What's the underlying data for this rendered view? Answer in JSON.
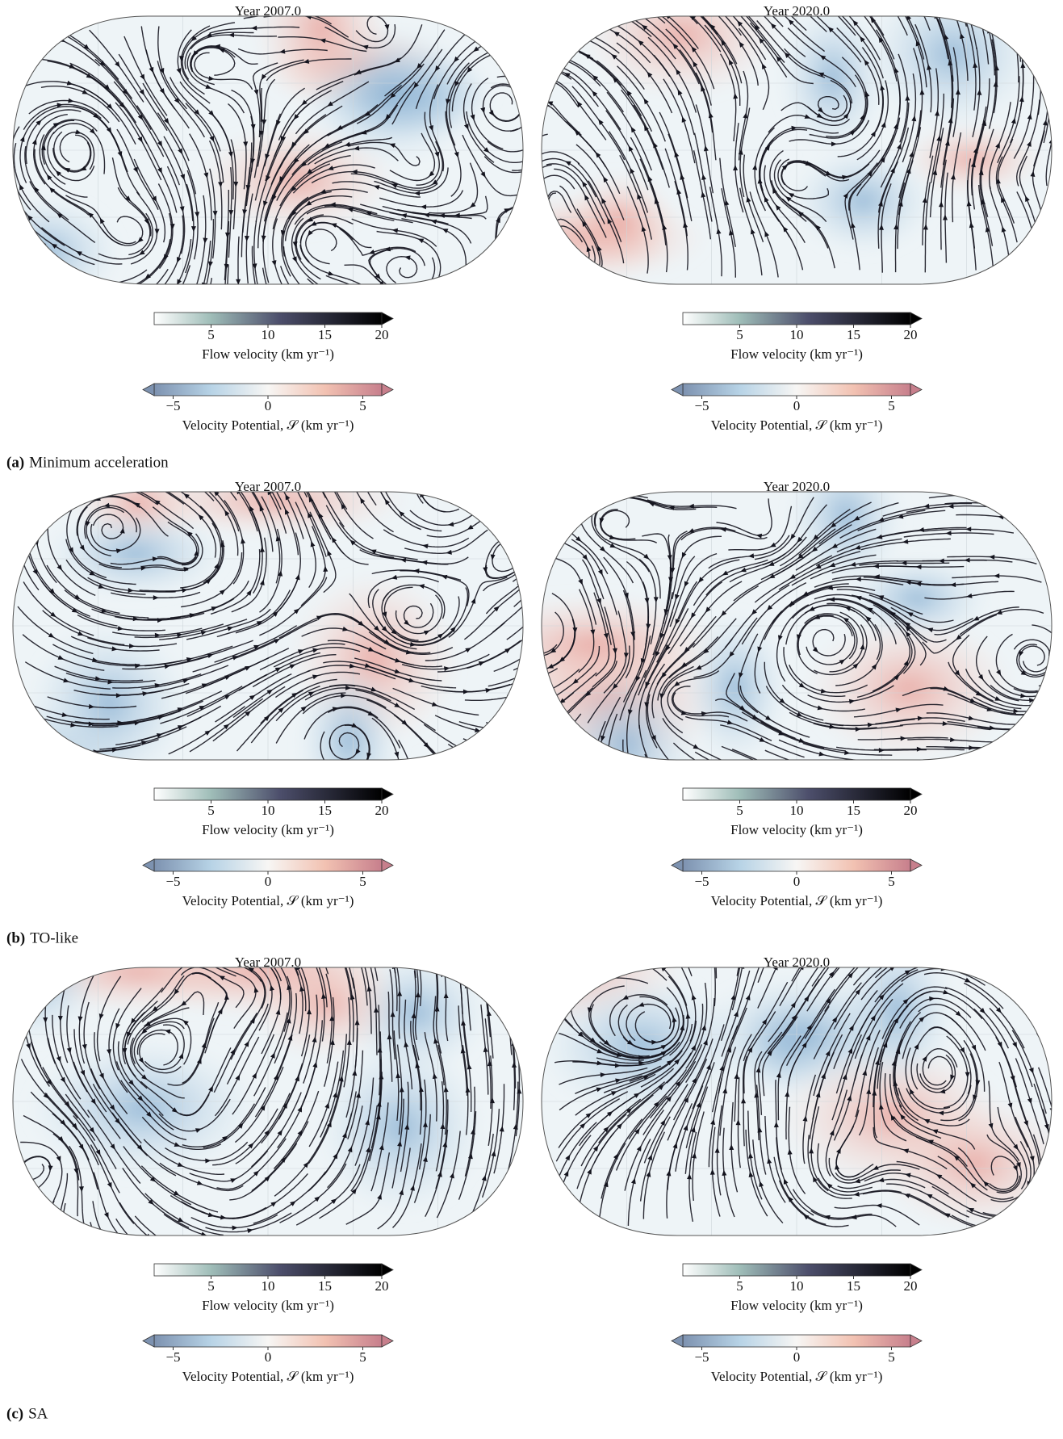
{
  "figure": {
    "panels": [
      {
        "label": "(a)",
        "caption": "Minimum acceleration",
        "maps": [
          {
            "title": "Year 2007.0",
            "colorbars": [
              {
                "label": "Flow velocity (km yr⁻¹)",
                "xlim": [
                  0,
                  20
                ],
                "xticks": [
                  5,
                  10,
                  15,
                  20
                ]
              },
              {
                "label": "Velocity Potential, 𝒮 (km yr⁻¹)",
                "xlim": [
                  -6,
                  6
                ],
                "xticks": [
                  {
                    "value": -5,
                    "label": "−5"
                  },
                  0,
                  5
                ]
              }
            ]
          },
          {
            "title": "Year 2020.0",
            "colorbars": [
              {
                "label": "Flow velocity (km yr⁻¹)",
                "xlim": [
                  0,
                  20
                ],
                "xticks": [
                  5,
                  10,
                  15,
                  20
                ]
              },
              {
                "label": "Velocity Potential, 𝒮 (km yr⁻¹)",
                "xlim": [
                  -6,
                  6
                ],
                "xticks": [
                  {
                    "value": -5,
                    "label": "−5"
                  },
                  0,
                  5
                ]
              }
            ]
          }
        ]
      },
      {
        "label": "(b)",
        "caption": "TO-like",
        "maps": [
          {
            "title": "Year 2007.0",
            "colorbars": [
              {
                "label": "Flow velocity (km yr⁻¹)",
                "xlim": [
                  0,
                  20
                ],
                "xticks": [
                  5,
                  10,
                  15,
                  20
                ]
              },
              {
                "label": "Velocity Potential, 𝒮 (km yr⁻¹)",
                "xlim": [
                  -6,
                  6
                ],
                "xticks": [
                  {
                    "value": -5,
                    "label": "−5"
                  },
                  0,
                  5
                ]
              }
            ]
          },
          {
            "title": "Year 2020.0",
            "colorbars": [
              {
                "label": "Flow velocity (km yr⁻¹)",
                "xlim": [
                  0,
                  20
                ],
                "xticks": [
                  5,
                  10,
                  15,
                  20
                ]
              },
              {
                "label": "Velocity Potential, 𝒮 (km yr⁻¹)",
                "xlim": [
                  -6,
                  6
                ],
                "xticks": [
                  {
                    "value": -5,
                    "label": "−5"
                  },
                  0,
                  5
                ]
              }
            ]
          }
        ]
      },
      {
        "label": "(c)",
        "caption": "SA",
        "maps": [
          {
            "title": "Year 2007.0",
            "colorbars": [
              {
                "label": "Flow velocity (km yr⁻¹)",
                "xlim": [
                  0,
                  20
                ],
                "xticks": [
                  5,
                  10,
                  15,
                  20
                ]
              },
              {
                "label": "Velocity Potential, 𝒮 (km yr⁻¹)",
                "xlim": [
                  -6,
                  6
                ],
                "xticks": [
                  {
                    "value": -5,
                    "label": "−5"
                  },
                  0,
                  5
                ]
              }
            ]
          },
          {
            "title": "Year 2020.0",
            "colorbars": [
              {
                "label": "Flow velocity (km yr⁻¹)",
                "xlim": [
                  0,
                  20
                ],
                "xticks": [
                  5,
                  10,
                  15,
                  20
                ]
              },
              {
                "label": "Velocity Potential, 𝒮 (km yr⁻¹)",
                "xlim": [
                  -6,
                  6
                ],
                "xticks": [
                  {
                    "value": -5,
                    "label": "−5"
                  },
                  0,
                  5
                ]
              }
            ]
          }
        ]
      }
    ]
  }
}
